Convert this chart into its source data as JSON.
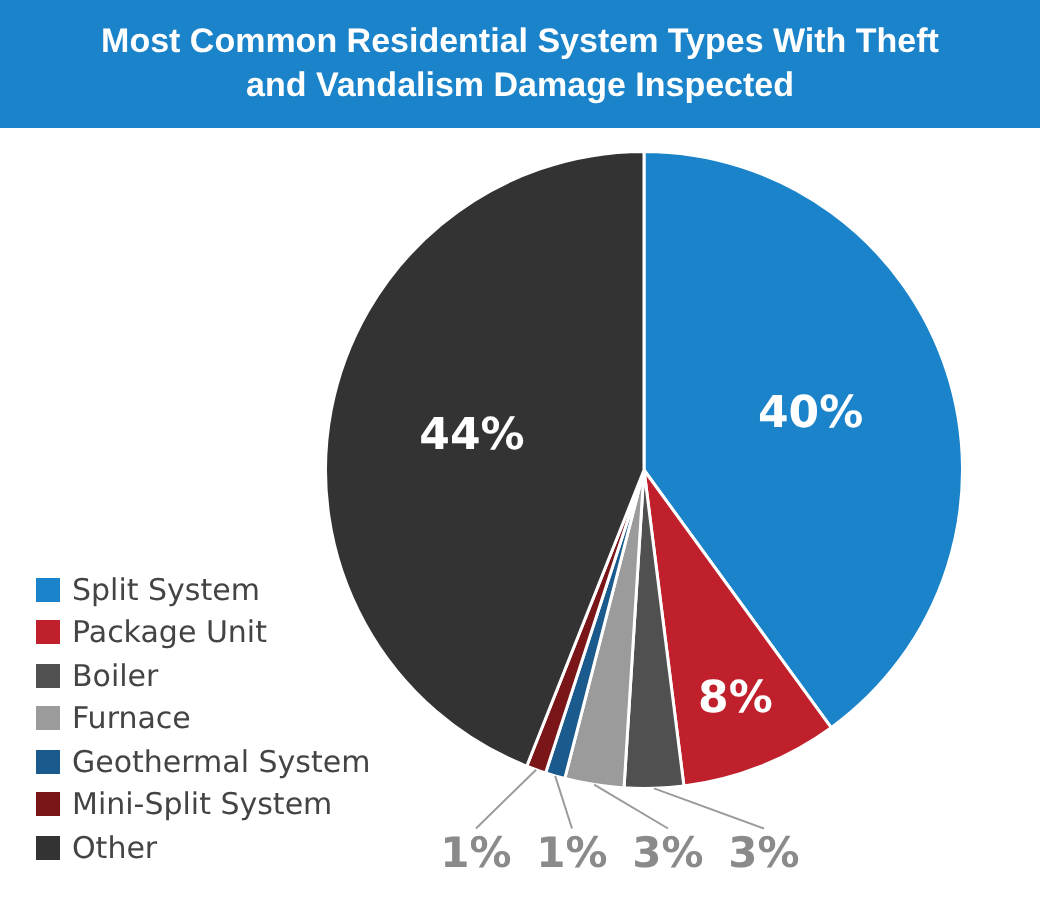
{
  "chart_data": {
    "type": "pie",
    "title": "Most Common Residential System Types With Theft and Vandalism Damage Inspected",
    "categories": [
      "Split System",
      "Package Unit",
      "Boiler",
      "Furnace",
      "Geothermal System",
      "Mini-Split System",
      "Other"
    ],
    "values": [
      40,
      8,
      3,
      3,
      1,
      1,
      44
    ],
    "colors": [
      "#1a83c9",
      "#c0202b",
      "#505050",
      "#9b9b9b",
      "#1a5a8c",
      "#7a1518",
      "#333333"
    ],
    "value_labels": [
      "40%",
      "8%",
      "3%",
      "3%",
      "1%",
      "1%",
      "44%"
    ],
    "legend": "bottom left"
  }
}
